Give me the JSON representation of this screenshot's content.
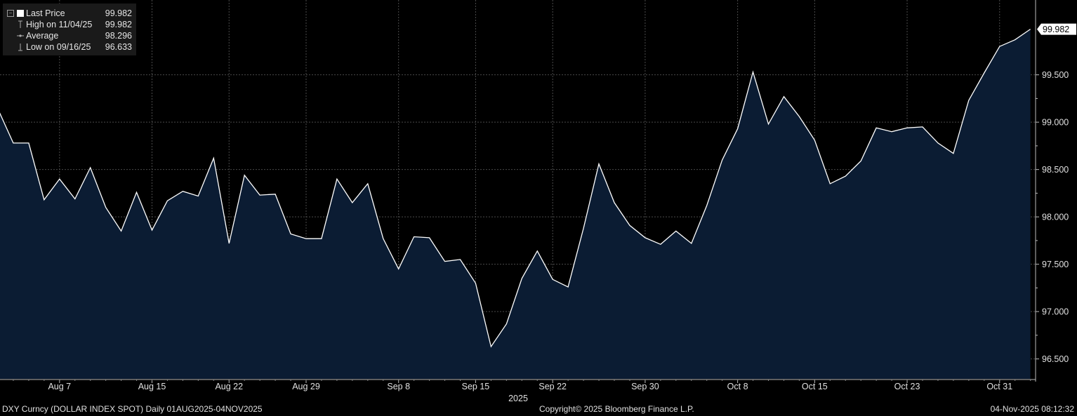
{
  "legend": {
    "last_price_label": "Last Price",
    "last_price_value": "99.982",
    "high_label": "High on 11/04/25",
    "high_value": "99.982",
    "average_label": "Average",
    "average_value": "98.296",
    "low_label": "Low on 09/16/25",
    "low_value": "96.633"
  },
  "footer": {
    "left": "DXY Curncy (DOLLAR INDEX SPOT) Daily 01AUG2025-04NOV2025",
    "center": "Copyright© 2025 Bloomberg Finance L.P.",
    "right": "04-Nov-2025 08:12:32"
  },
  "colors": {
    "background": "#000000",
    "area_fill": "#0b1c33",
    "line": "#ffffff",
    "grid": "#4a4a4a",
    "axis_text": "#e0e0e0"
  },
  "chart_data": {
    "type": "area",
    "x": [
      "2025-08-01",
      "2025-08-04",
      "2025-08-05",
      "2025-08-06",
      "2025-08-07",
      "2025-08-08",
      "2025-08-11",
      "2025-08-12",
      "2025-08-13",
      "2025-08-14",
      "2025-08-15",
      "2025-08-18",
      "2025-08-19",
      "2025-08-20",
      "2025-08-21",
      "2025-08-22",
      "2025-08-25",
      "2025-08-26",
      "2025-08-27",
      "2025-08-28",
      "2025-08-29",
      "2025-09-01",
      "2025-09-02",
      "2025-09-03",
      "2025-09-04",
      "2025-09-05",
      "2025-09-08",
      "2025-09-09",
      "2025-09-10",
      "2025-09-11",
      "2025-09-12",
      "2025-09-15",
      "2025-09-16",
      "2025-09-17",
      "2025-09-18",
      "2025-09-19",
      "2025-09-22",
      "2025-09-23",
      "2025-09-24",
      "2025-09-25",
      "2025-09-26",
      "2025-09-29",
      "2025-09-30",
      "2025-10-01",
      "2025-10-02",
      "2025-10-03",
      "2025-10-06",
      "2025-10-07",
      "2025-10-08",
      "2025-10-09",
      "2025-10-10",
      "2025-10-13",
      "2025-10-14",
      "2025-10-15",
      "2025-10-16",
      "2025-10-17",
      "2025-10-20",
      "2025-10-21",
      "2025-10-22",
      "2025-10-23",
      "2025-10-24",
      "2025-10-27",
      "2025-10-28",
      "2025-10-29",
      "2025-10-30",
      "2025-10-31",
      "2025-11-03",
      "2025-11-04"
    ],
    "values": [
      99.14,
      98.78,
      98.78,
      98.18,
      98.4,
      98.19,
      98.52,
      98.1,
      97.85,
      98.26,
      97.86,
      98.17,
      98.27,
      98.22,
      98.62,
      97.72,
      98.44,
      98.23,
      98.24,
      97.82,
      97.77,
      97.77,
      98.4,
      98.15,
      98.35,
      97.77,
      97.45,
      97.79,
      97.78,
      97.53,
      97.55,
      97.3,
      96.63,
      96.87,
      97.35,
      97.64,
      97.34,
      97.26,
      97.88,
      98.56,
      98.15,
      97.91,
      97.78,
      97.71,
      97.85,
      97.72,
      98.12,
      98.6,
      98.93,
      99.53,
      98.98,
      99.27,
      99.06,
      98.81,
      98.35,
      98.43,
      98.59,
      98.94,
      98.9,
      98.94,
      98.95,
      98.78,
      98.67,
      99.23,
      99.52,
      99.8,
      99.87,
      99.982
    ],
    "x_tick_labels": [
      {
        "date": "2025-08-07",
        "label": "Aug 7"
      },
      {
        "date": "2025-08-15",
        "label": "Aug 15"
      },
      {
        "date": "2025-08-22",
        "label": "Aug 22"
      },
      {
        "date": "2025-08-29",
        "label": "Aug 29"
      },
      {
        "date": "2025-09-08",
        "label": "Sep 8"
      },
      {
        "date": "2025-09-15",
        "label": "Sep 15"
      },
      {
        "date": "2025-09-22",
        "label": "Sep 22"
      },
      {
        "date": "2025-09-30",
        "label": "Sep 30"
      },
      {
        "date": "2025-10-08",
        "label": "Oct 8"
      },
      {
        "date": "2025-10-15",
        "label": "Oct 15"
      },
      {
        "date": "2025-10-23",
        "label": "Oct 23"
      },
      {
        "date": "2025-10-31",
        "label": "Oct 31"
      }
    ],
    "x_group_label": "2025",
    "y_ticks": [
      96.5,
      97.0,
      97.5,
      98.0,
      98.5,
      99.0,
      99.5
    ],
    "y_tick_labels": [
      "96.500",
      "97.000",
      "97.500",
      "98.000",
      "98.500",
      "99.000",
      "99.500"
    ],
    "ylim": [
      96.29,
      100.29
    ],
    "last_value_label": "99.982",
    "grid": true,
    "y_axis_side": "right"
  }
}
